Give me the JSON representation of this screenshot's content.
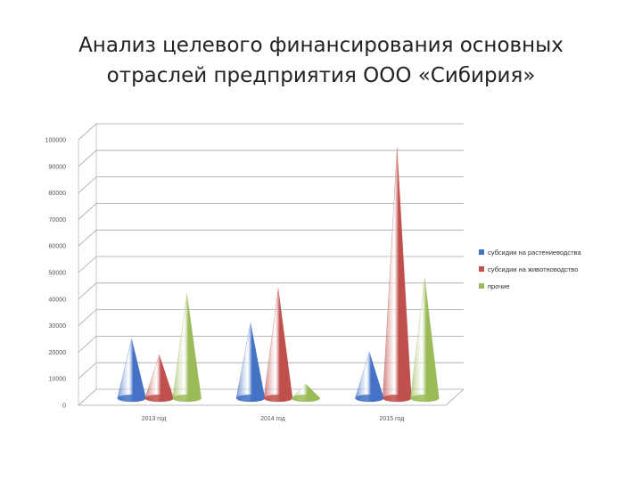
{
  "slide": {
    "title_line1": "Анализ целевого финансирования основных",
    "title_line2": "отраслей предприятия ООО «Сибирия»"
  },
  "chart_data": {
    "type": "bar",
    "bar_shape": "cone-3d",
    "title": "Анализ целевого финансирования основных отраслей предприятия ООО «Сибирия»",
    "categories": [
      "2013 год",
      "2014 год",
      "2015 год"
    ],
    "series": [
      {
        "name": "субсидии на растениеводства",
        "color": "#4472C4",
        "values": [
          23000,
          29000,
          18000
        ]
      },
      {
        "name": "субсидии на животноводство",
        "color": "#C0504D",
        "values": [
          17000,
          42000,
          95000
        ]
      },
      {
        "name": "прочие",
        "color": "#9BBB59",
        "values": [
          40000,
          6000,
          46000
        ]
      }
    ],
    "ylim": [
      0,
      100000
    ],
    "yticks": [
      0,
      10000,
      20000,
      30000,
      40000,
      50000,
      60000,
      70000,
      80000,
      90000,
      100000
    ],
    "grid": true,
    "legend": "right"
  }
}
